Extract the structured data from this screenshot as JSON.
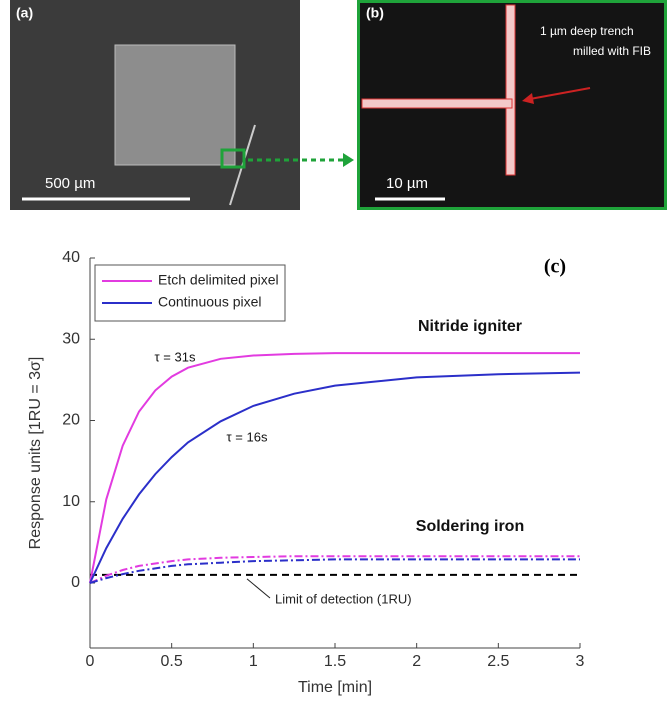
{
  "panels": {
    "a_label": "(a)",
    "a_scale": "500 µm",
    "b_label": "(b)",
    "b_scale": "10 µm",
    "b_note": [
      "1 µm deep trench",
      "milled with FIB"
    ]
  },
  "chart_data": {
    "type": "line",
    "panel_label": "(c)",
    "x_label": "Time [min]",
    "y_label": "Response units [1RU = 3σ]",
    "x": [
      0,
      0.1,
      0.2,
      0.3,
      0.4,
      0.5,
      0.6,
      0.8,
      1,
      1.25,
      1.5,
      2,
      2.5,
      3
    ],
    "series": [
      {
        "name": "Etch delimited pixel",
        "color": "#e23be0",
        "dash": "solid",
        "values": [
          0,
          10.3,
          16.9,
          21.1,
          23.7,
          25.4,
          26.5,
          27.6,
          28.0,
          28.2,
          28.3,
          28.3,
          28.3,
          28.3
        ]
      },
      {
        "name": "Continuous pixel",
        "color": "#2b2fc9",
        "dash": "solid",
        "values": [
          0,
          4.3,
          7.9,
          10.9,
          13.4,
          15.5,
          17.3,
          19.9,
          21.8,
          23.3,
          24.3,
          25.3,
          25.7,
          25.9
        ]
      },
      {
        "color": "#e23be0",
        "dash": "dashdot",
        "values": [
          0,
          0.9,
          1.6,
          2.1,
          2.4,
          2.7,
          2.9,
          3.1,
          3.2,
          3.3,
          3.3,
          3.3,
          3.3,
          3.3
        ]
      },
      {
        "color": "#2b2fc9",
        "dash": "dashdot",
        "values": [
          0,
          0.6,
          1.1,
          1.5,
          1.8,
          2.1,
          2.3,
          2.5,
          2.7,
          2.8,
          2.9,
          2.9,
          2.9,
          2.9
        ]
      }
    ],
    "threshold": {
      "value": 1,
      "label": "Limit of detection (1RU)",
      "color": "#000000"
    },
    "annotations": [
      "Nitride igniter",
      "Soldering iron",
      "τ = 31s",
      "τ = 16s"
    ],
    "xlim": [
      0,
      3
    ],
    "xticks": [
      0,
      0.5,
      1,
      1.5,
      2,
      2.5,
      3
    ],
    "ylim": [
      -8,
      40
    ],
    "yticks": [
      0,
      10,
      20,
      30,
      40
    ],
    "legend": "upper left"
  }
}
